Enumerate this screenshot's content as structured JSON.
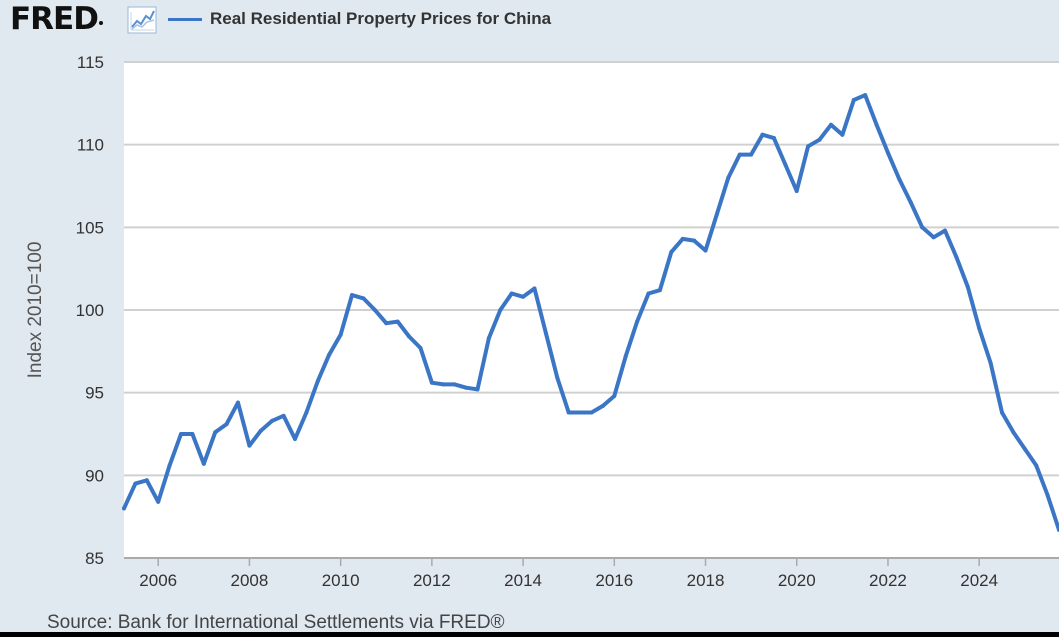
{
  "header": {
    "logo_text": "FRED",
    "graph_icon": "line-graph-icon"
  },
  "chart_data": {
    "type": "line",
    "title": "Real Residential Property Prices for China",
    "xlabel": "",
    "ylabel": "Index 2010=100",
    "ylim": [
      85,
      115
    ],
    "xlim": [
      2005.25,
      2025.75
    ],
    "yticks": [
      85,
      90,
      95,
      100,
      105,
      110,
      115
    ],
    "xticks": [
      2006,
      2008,
      2010,
      2012,
      2014,
      2016,
      2018,
      2020,
      2022,
      2024
    ],
    "grid": "horizontal",
    "line_color": "#3b76c6",
    "series": [
      {
        "name": "Real Residential Property Prices for China",
        "x": [
          2005.25,
          2005.5,
          2005.75,
          2006.0,
          2006.25,
          2006.5,
          2006.75,
          2007.0,
          2007.25,
          2007.5,
          2007.75,
          2008.0,
          2008.25,
          2008.5,
          2008.75,
          2009.0,
          2009.25,
          2009.5,
          2009.75,
          2010.0,
          2010.25,
          2010.5,
          2010.75,
          2011.0,
          2011.25,
          2011.5,
          2011.75,
          2012.0,
          2012.25,
          2012.5,
          2012.75,
          2013.0,
          2013.25,
          2013.5,
          2013.75,
          2014.0,
          2014.25,
          2014.5,
          2014.75,
          2015.0,
          2015.25,
          2015.5,
          2015.75,
          2016.0,
          2016.25,
          2016.5,
          2016.75,
          2017.0,
          2017.25,
          2017.5,
          2017.75,
          2018.0,
          2018.25,
          2018.5,
          2018.75,
          2019.0,
          2019.25,
          2019.5,
          2019.75,
          2020.0,
          2020.25,
          2020.5,
          2020.75,
          2021.0,
          2021.25,
          2021.5,
          2021.75,
          2022.0,
          2022.25,
          2022.5,
          2022.75,
          2023.0,
          2023.25,
          2023.5,
          2023.75,
          2024.0,
          2024.25,
          2024.5,
          2024.75,
          2025.0,
          2025.25,
          2025.5,
          2025.75
        ],
        "values": [
          88.0,
          89.5,
          89.7,
          88.4,
          90.6,
          92.5,
          92.5,
          90.7,
          92.6,
          93.1,
          94.4,
          91.8,
          92.7,
          93.3,
          93.6,
          92.2,
          93.8,
          95.7,
          97.3,
          98.5,
          100.9,
          100.7,
          100.0,
          99.2,
          99.3,
          98.4,
          97.7,
          95.6,
          95.5,
          95.5,
          95.3,
          95.2,
          98.3,
          100.0,
          101.0,
          100.8,
          101.3,
          98.6,
          95.9,
          93.8,
          93.8,
          93.8,
          94.2,
          94.8,
          97.2,
          99.3,
          101.0,
          101.2,
          103.5,
          104.3,
          104.2,
          103.6,
          105.8,
          108.0,
          109.4,
          109.4,
          110.6,
          110.4,
          108.8,
          107.2,
          109.9,
          110.3,
          111.2,
          110.6,
          112.7,
          113.0,
          111.2,
          109.5,
          107.9,
          106.5,
          105.0,
          104.4,
          104.8,
          103.2,
          101.4,
          98.9,
          96.8,
          93.8,
          92.6,
          91.6,
          90.6,
          88.8,
          86.7
        ]
      }
    ]
  },
  "footer": {
    "source": "Source: Bank for International Settlements via FRED®"
  }
}
